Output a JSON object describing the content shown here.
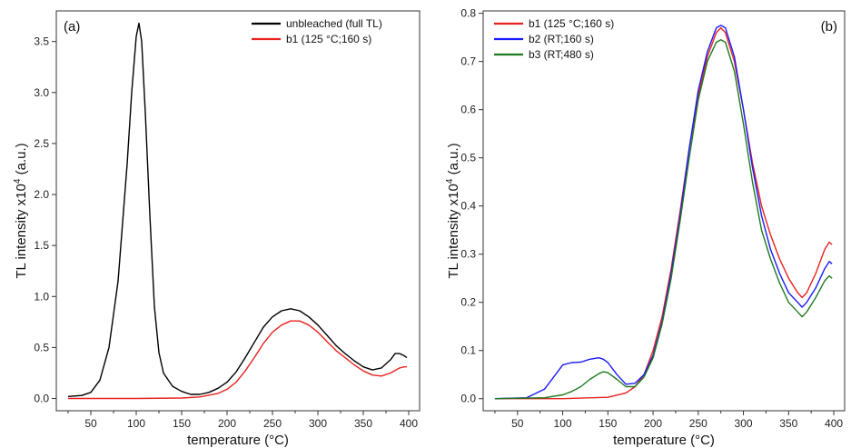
{
  "chart_data": [
    {
      "type": "line",
      "panel_label": "(a)",
      "xlabel": "temperature (°C)",
      "ylabel": "TL intensity x10",
      "ylabel_sup": "4",
      "ylabel_unit": " (a.u.)",
      "xlim": [
        12,
        412
      ],
      "ylim": [
        -0.12,
        3.8
      ],
      "xticks": [
        50,
        100,
        150,
        200,
        250,
        300,
        350,
        400
      ],
      "yticks": [
        0.0,
        0.5,
        1.0,
        1.5,
        2.0,
        2.5,
        3.0,
        3.5
      ],
      "ytick_labels": [
        "0.0",
        "0.5",
        "1.0",
        "1.5",
        "2.0",
        "2.5",
        "3.0",
        "3.5"
      ],
      "legend_position": "top-right",
      "series": [
        {
          "name": "unbleached (full TL)",
          "color": "#000000",
          "x": [
            25,
            40,
            50,
            60,
            70,
            80,
            90,
            95,
            100,
            103,
            106,
            110,
            115,
            120,
            125,
            130,
            140,
            150,
            160,
            170,
            180,
            190,
            200,
            210,
            220,
            230,
            240,
            250,
            260,
            270,
            280,
            290,
            300,
            310,
            320,
            330,
            340,
            350,
            360,
            370,
            380,
            385,
            390,
            395,
            398
          ],
          "y": [
            0.02,
            0.03,
            0.06,
            0.18,
            0.5,
            1.15,
            2.3,
            3.0,
            3.55,
            3.68,
            3.5,
            2.8,
            1.8,
            0.9,
            0.45,
            0.25,
            0.12,
            0.07,
            0.04,
            0.04,
            0.06,
            0.1,
            0.16,
            0.26,
            0.4,
            0.55,
            0.7,
            0.8,
            0.86,
            0.88,
            0.86,
            0.8,
            0.72,
            0.62,
            0.52,
            0.44,
            0.37,
            0.31,
            0.28,
            0.3,
            0.38,
            0.44,
            0.44,
            0.42,
            0.4
          ]
        },
        {
          "name": "b1 (125 °C;160 s)",
          "color": "#e8221f",
          "x": [
            25,
            100,
            150,
            170,
            190,
            200,
            210,
            220,
            230,
            240,
            250,
            260,
            270,
            280,
            290,
            300,
            310,
            320,
            330,
            340,
            350,
            360,
            370,
            380,
            390,
            395,
            398
          ],
          "y": [
            0.0,
            0.0,
            0.005,
            0.015,
            0.05,
            0.09,
            0.16,
            0.27,
            0.4,
            0.54,
            0.65,
            0.72,
            0.76,
            0.76,
            0.72,
            0.65,
            0.56,
            0.47,
            0.4,
            0.33,
            0.27,
            0.23,
            0.22,
            0.25,
            0.3,
            0.31,
            0.31
          ]
        }
      ]
    },
    {
      "type": "line",
      "panel_label": "(b)",
      "xlabel": "temperature (°C)",
      "ylabel": "TL intensity x10",
      "ylabel_sup": "4",
      "ylabel_unit": " (a.u.)",
      "xlim": [
        12,
        412
      ],
      "ylim": [
        -0.025,
        0.805
      ],
      "xticks": [
        50,
        100,
        150,
        200,
        250,
        300,
        350,
        400
      ],
      "yticks": [
        0.0,
        0.1,
        0.2,
        0.3,
        0.4,
        0.5,
        0.6,
        0.7,
        0.8
      ],
      "ytick_labels": [
        "0.0",
        "0.1",
        "0.2",
        "0.3",
        "0.4",
        "0.5",
        "0.6",
        "0.7",
        "0.8"
      ],
      "legend_position": "top-left",
      "series": [
        {
          "name": "b1 (125 °C;160 s)",
          "color": "#e8221f",
          "x": [
            25,
            100,
            150,
            170,
            180,
            190,
            200,
            210,
            220,
            230,
            240,
            250,
            260,
            270,
            275,
            280,
            290,
            300,
            310,
            320,
            330,
            340,
            350,
            360,
            365,
            370,
            380,
            390,
            395,
            398
          ],
          "y": [
            0.0,
            0.0,
            0.003,
            0.012,
            0.025,
            0.05,
            0.1,
            0.17,
            0.27,
            0.39,
            0.52,
            0.63,
            0.71,
            0.76,
            0.77,
            0.76,
            0.7,
            0.6,
            0.49,
            0.4,
            0.34,
            0.29,
            0.25,
            0.22,
            0.21,
            0.22,
            0.26,
            0.31,
            0.325,
            0.32
          ]
        },
        {
          "name": "b2 (RT;160 s)",
          "color": "#1a1aff",
          "x": [
            25,
            60,
            80,
            90,
            100,
            110,
            120,
            130,
            140,
            145,
            150,
            160,
            170,
            180,
            190,
            200,
            210,
            220,
            230,
            240,
            250,
            260,
            270,
            275,
            280,
            290,
            300,
            310,
            320,
            330,
            340,
            350,
            360,
            365,
            370,
            380,
            390,
            395,
            398
          ],
          "y": [
            0.0,
            0.002,
            0.02,
            0.045,
            0.07,
            0.075,
            0.076,
            0.082,
            0.085,
            0.082,
            0.075,
            0.05,
            0.03,
            0.032,
            0.05,
            0.09,
            0.16,
            0.26,
            0.38,
            0.52,
            0.64,
            0.72,
            0.77,
            0.775,
            0.77,
            0.71,
            0.6,
            0.48,
            0.38,
            0.31,
            0.26,
            0.22,
            0.2,
            0.19,
            0.2,
            0.23,
            0.27,
            0.285,
            0.28
          ]
        },
        {
          "name": "b3 (RT;480 s)",
          "color": "#1e7a1e",
          "x": [
            25,
            80,
            100,
            110,
            120,
            130,
            140,
            145,
            150,
            160,
            170,
            180,
            190,
            200,
            210,
            220,
            230,
            240,
            250,
            260,
            270,
            275,
            280,
            290,
            300,
            310,
            320,
            330,
            340,
            350,
            360,
            365,
            370,
            380,
            390,
            395,
            398
          ],
          "y": [
            0.0,
            0.002,
            0.008,
            0.015,
            0.025,
            0.04,
            0.052,
            0.056,
            0.054,
            0.04,
            0.025,
            0.025,
            0.045,
            0.085,
            0.155,
            0.25,
            0.37,
            0.5,
            0.62,
            0.7,
            0.74,
            0.745,
            0.74,
            0.68,
            0.57,
            0.45,
            0.35,
            0.29,
            0.24,
            0.2,
            0.18,
            0.17,
            0.18,
            0.21,
            0.245,
            0.255,
            0.25
          ]
        }
      ]
    }
  ]
}
